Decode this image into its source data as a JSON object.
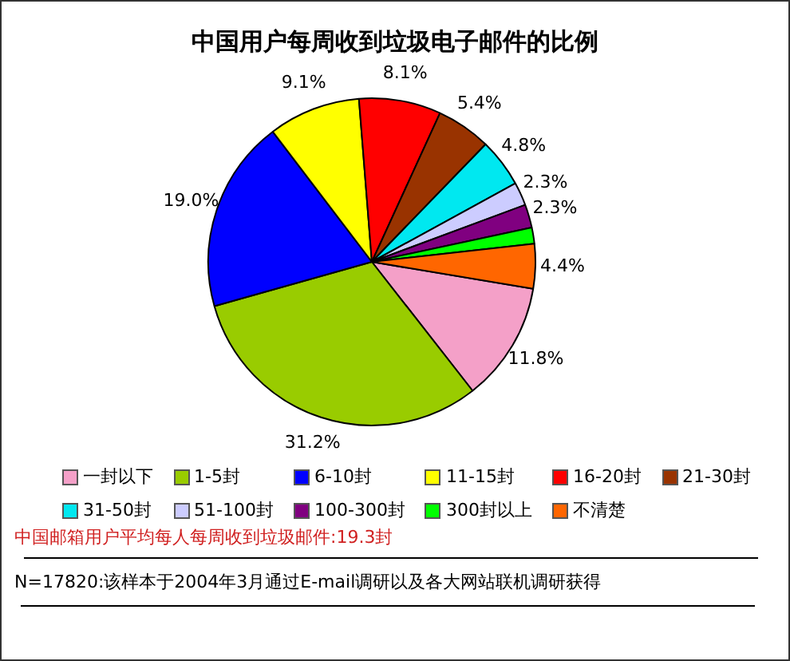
{
  "chart_data": {
    "type": "pie",
    "title": "中国用户每周收到垃圾电子邮件的比例",
    "categories": [
      "一封以下",
      "1-5封",
      "6-10封",
      "11-15封",
      "16-20封",
      "21-30封",
      "31-50封",
      "51-100封",
      "100-300封",
      "300封以上",
      "不清楚"
    ],
    "values": [
      11.8,
      31.2,
      19.0,
      9.1,
      8.1,
      5.4,
      4.8,
      2.3,
      2.3,
      1.6,
      4.4
    ],
    "value_labels": [
      "11.8%",
      "31.2%",
      "19.0%",
      "9.1%",
      "8.1%",
      "5.4%",
      "4.8%",
      "2.3%",
      "2.3%",
      null,
      "4.4%"
    ],
    "colors": [
      "#f4a0c8",
      "#99cc00",
      "#0000ff",
      "#ffff00",
      "#ff0000",
      "#993300",
      "#00e8f0",
      "#ccccff",
      "#800080",
      "#00ff00",
      "#ff6600"
    ],
    "legend": "bottom",
    "annotations": [
      "中国邮箱用户平均每人每周收到垃圾邮件:19.3封",
      "N=17820:该样本于2004年3月通过E-mail调研以及各大网站联机调研获得"
    ]
  }
}
